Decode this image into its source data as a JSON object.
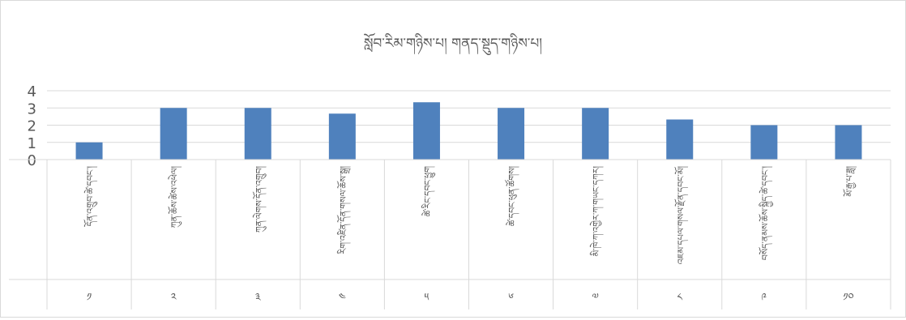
{
  "chart_data": {
    "type": "bar",
    "title": "སློབ་རིམ་གཉིས་པ། གནད་སྡུད་གཉིས་པ།",
    "categories": [
      "དོན་འགྲུབ་ཚེ་དབང་།",
      "ཀུན་ཆོས་ཚེས་འཕེལ།",
      "ཀུན་ལེགས་དོན་འགྲུབ།",
      "རིག་འཛིན་དོན་གསལ་ཆོས་སྒྲ།",
      "ཚེ་རིང་དབང་ཕྱུག",
      "ཚེ་དབང་ཕུན་ཚོགས།",
      "མི་ཁེ་ཀ་འགྱེར་ཀ་གཡང་དཀར།",
      "འཇམ་དཔལ་གསལ་རྫོན་དབང་མོ།",
      "བསོད་ནམས་ཆོས་སྐྱིད་ཚེ་དབང་།",
      "མོ་རྒྱ་པ་ཟླ།"
    ],
    "category_numbers": [
      "༡",
      "༢",
      "༣",
      "༤",
      "༥",
      "༦",
      "༧",
      "༨",
      "༩",
      "༡༠"
    ],
    "series": [
      {
        "values": [
          1,
          3,
          3,
          2.67,
          3.33,
          3,
          3,
          2.33,
          2,
          2
        ]
      }
    ],
    "ylim": [
      0,
      4
    ],
    "yticks": [
      "0",
      "1",
      "2",
      "3",
      "4"
    ],
    "grid": true,
    "legend": "none",
    "bar_color": "#4f81bd",
    "grid_color": "#d9d9d9"
  }
}
